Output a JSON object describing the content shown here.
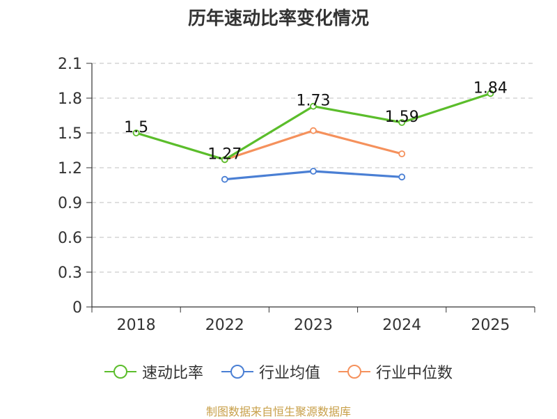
{
  "chart_data": {
    "type": "line",
    "title": "历年速动比率变化情况",
    "categories": [
      "2018",
      "2022",
      "2023",
      "2024",
      "2025"
    ],
    "yticks": [
      "0",
      "0.3",
      "0.6",
      "0.9",
      "1.2",
      "1.5",
      "1.8",
      "2.1"
    ],
    "ylim": [
      0,
      2.1
    ],
    "series": [
      {
        "name": "速动比率",
        "color": "#5bbd2b",
        "values": [
          1.5,
          1.27,
          1.73,
          1.59,
          1.84
        ],
        "labels": [
          "1.5",
          "1.27",
          "1.73",
          "1.59",
          "1.84"
        ]
      },
      {
        "name": "行业均值",
        "color": "#4a7fd4",
        "values": [
          null,
          1.1,
          1.17,
          1.12,
          null
        ]
      },
      {
        "name": "行业中位数",
        "color": "#f5915c",
        "values": [
          null,
          1.27,
          1.52,
          1.32,
          null
        ]
      }
    ],
    "legend_position": "bottom",
    "grid": true
  },
  "source": "制图数据来自恒生聚源数据库"
}
